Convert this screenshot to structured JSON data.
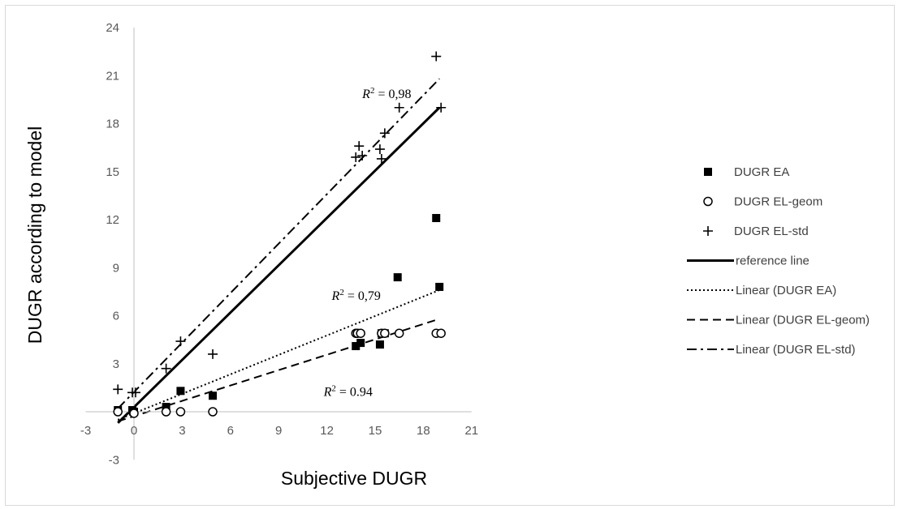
{
  "chart_data": {
    "type": "scatter",
    "title": "",
    "xlabel": "Subjective DUGR",
    "ylabel": "DUGR according to model",
    "xlim": [
      -3,
      21
    ],
    "ylim": [
      -3,
      24
    ],
    "xticks": [
      -3,
      0,
      3,
      6,
      9,
      12,
      15,
      18,
      21
    ],
    "yticks": [
      -3,
      3,
      6,
      9,
      12,
      15,
      18,
      21,
      24
    ],
    "grid": false,
    "legend_position": "right",
    "series": [
      {
        "name": "DUGR EA",
        "marker": "square",
        "x": [
          -1,
          -0.1,
          0,
          2,
          2.9,
          4.9,
          13.8,
          14.1,
          15.3,
          15.4,
          15.6,
          16.4,
          18.8,
          19
        ],
        "y": [
          0.1,
          0.1,
          0,
          0.3,
          1.3,
          1.0,
          4.1,
          4.3,
          4.2,
          4.9,
          4.9,
          8.4,
          12.1,
          7.8
        ]
      },
      {
        "name": "DUGR EL-geom",
        "marker": "circle",
        "x": [
          -1,
          0,
          2,
          2.9,
          4.9,
          13.8,
          13.9,
          14.1,
          15.4,
          15.6,
          16.5,
          18.8,
          19.1
        ],
        "y": [
          0,
          -0.1,
          0,
          0,
          0,
          4.9,
          4.9,
          4.9,
          4.9,
          4.9,
          4.9,
          4.9,
          4.9
        ]
      },
      {
        "name": "DUGR EL-std",
        "marker": "plus",
        "x": [
          -1,
          -0.1,
          0.1,
          2,
          2.9,
          4.9,
          13.8,
          14.0,
          14.2,
          15.3,
          15.4,
          15.6,
          16.5,
          18.8,
          19.1
        ],
        "y": [
          1.4,
          1.2,
          1.2,
          2.7,
          4.4,
          3.6,
          15.9,
          16.6,
          16.0,
          16.4,
          15.8,
          17.4,
          19.0,
          22.2,
          19.0
        ]
      }
    ],
    "lines": [
      {
        "name": "reference line",
        "style": "solid",
        "x": [
          -1,
          19
        ],
        "y": [
          -0.7,
          19
        ]
      },
      {
        "name": "Linear (DUGR EA)",
        "style": "dotted",
        "x": [
          -1,
          19
        ],
        "y": [
          -0.5,
          7.6
        ]
      },
      {
        "name": "Linear (DUGR EL-geom)",
        "style": "dashed",
        "x": [
          -1,
          19
        ],
        "y": [
          -0.6,
          5.8
        ]
      },
      {
        "name": "Linear (DUGR EL-std)",
        "style": "dashdot",
        "x": [
          -1,
          19
        ],
        "y": [
          0.2,
          20.8
        ]
      }
    ],
    "annotations": [
      {
        "prefix": "R",
        "sup": "2",
        "text": " = 0,98",
        "x": 14.2,
        "y": 19.6
      },
      {
        "prefix": "R",
        "sup": "2",
        "text": " = 0,79",
        "x": 12.3,
        "y": 7.0
      },
      {
        "prefix": "R",
        "sup": "2",
        "text": " = 0.94",
        "x": 11.8,
        "y": 1.0
      }
    ]
  }
}
